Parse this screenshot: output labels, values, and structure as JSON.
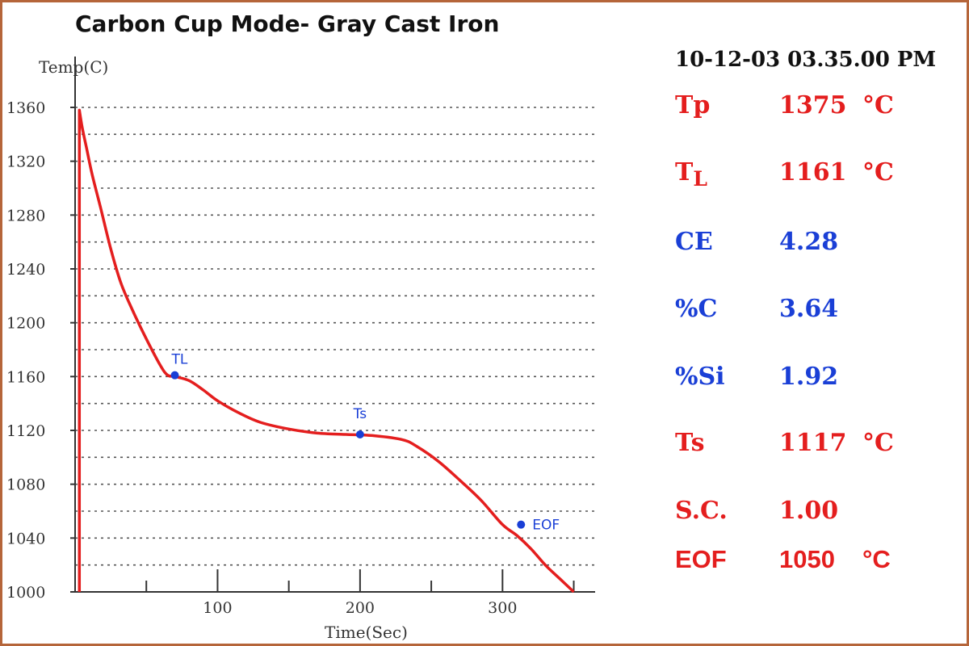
{
  "colors": {
    "frame": "#b5653a",
    "curve": "#e41e1e",
    "red_text": "#e41e1e",
    "blue_text": "#1a3fd6",
    "grid": "#555555"
  },
  "chart_data": {
    "type": "line",
    "title": "Carbon Cup Mode- Gray Cast Iron",
    "xlabel": "Time(Sec)",
    "ylabel": "Temp(C)",
    "xlim": [
      0,
      365
    ],
    "ylim": [
      1000,
      1360
    ],
    "x_ticks": [
      100,
      200,
      300
    ],
    "y_ticks": [
      1000,
      1040,
      1080,
      1120,
      1160,
      1200,
      1240,
      1280,
      1320,
      1360
    ],
    "grid": true,
    "series": [
      {
        "x": [
          3,
          3,
          5,
          8,
          12,
          18,
          25,
          32,
          40,
          50,
          60,
          65,
          70,
          80,
          90,
          100,
          115,
          130,
          150,
          170,
          190,
          210,
          230,
          240,
          255,
          270,
          285,
          300,
          310,
          320,
          330,
          340,
          350
        ],
        "y": [
          1000,
          1358,
          1345,
          1330,
          1310,
          1285,
          1255,
          1230,
          1210,
          1188,
          1168,
          1161,
          1160,
          1157,
          1150,
          1142,
          1133,
          1126,
          1121,
          1118,
          1117,
          1116,
          1113,
          1108,
          1097,
          1083,
          1068,
          1050,
          1042,
          1032,
          1020,
          1010,
          1000
        ]
      }
    ],
    "markers": [
      {
        "label": "TL",
        "x": 70,
        "y": 1161
      },
      {
        "label": "Ts",
        "x": 200,
        "y": 1117
      },
      {
        "label": "EOF",
        "x": 313,
        "y": 1050
      }
    ]
  },
  "readout": {
    "datetime": "10-12-03 03.35.00 PM",
    "rows": [
      {
        "label": "Tp",
        "value": "1375",
        "unit": "°C",
        "color": "red"
      },
      {
        "label": "T",
        "sub": "L",
        "value": "1161",
        "unit": "°C",
        "color": "red"
      },
      {
        "label": "CE",
        "value": "4.28",
        "unit": "",
        "color": "blue"
      },
      {
        "label": "%C",
        "value": "3.64",
        "unit": "",
        "color": "blue"
      },
      {
        "label": "%Si",
        "value": "1.92",
        "unit": "",
        "color": "blue"
      },
      {
        "label": "Ts",
        "value": "1117",
        "unit": "°C",
        "color": "red"
      },
      {
        "label": "S.C.",
        "value": "1.00",
        "unit": "",
        "color": "red"
      },
      {
        "label": "EOF",
        "value": "1050",
        "unit": "°C",
        "color": "red"
      }
    ]
  }
}
